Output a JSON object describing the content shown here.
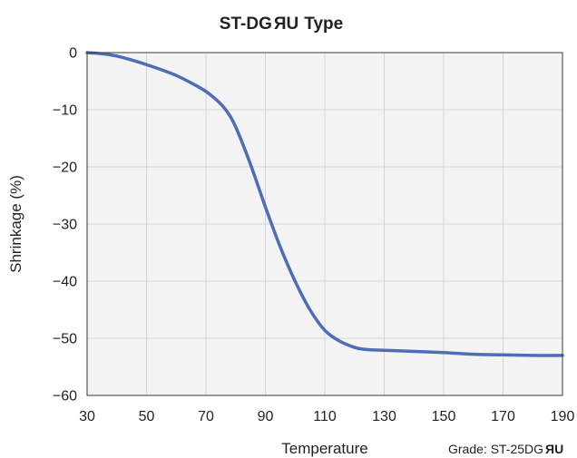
{
  "chart_data": {
    "type": "line",
    "title": "ST-DG",
    "title_suffix": "Type",
    "title_mark": "ur-recognized-mark",
    "xlabel": "Temperature",
    "ylabel": "Shrinkage (%)",
    "note": "Grade: ST-25DG",
    "note_mark": "ur-recognized-mark",
    "xlim": [
      30,
      190
    ],
    "ylim": [
      -60,
      0
    ],
    "x_ticks": [
      30,
      50,
      70,
      90,
      110,
      130,
      150,
      170,
      190
    ],
    "y_ticks": [
      0,
      -10,
      -20,
      -30,
      -40,
      -50,
      -60
    ],
    "x_tick_labels": [
      "30",
      "50",
      "70",
      "90",
      "110",
      "130",
      "150",
      "170",
      "190"
    ],
    "y_tick_labels": [
      "0",
      "−10",
      "−20",
      "−30",
      "−40",
      "−50",
      "−60"
    ],
    "grid": true,
    "series": [
      {
        "color": "#4f6cb5",
        "x": [
          30,
          35,
          40,
          45,
          50,
          55,
          60,
          65,
          70,
          75,
          78,
          80,
          83,
          86,
          90,
          95,
          100,
          105,
          110,
          115,
          120,
          123,
          125,
          130,
          140,
          150,
          160,
          170,
          180,
          190
        ],
        "y": [
          0,
          -0.2,
          -0.6,
          -1.3,
          -2.1,
          -3.0,
          -4.0,
          -5.3,
          -6.8,
          -9.0,
          -11.0,
          -13.0,
          -16.8,
          -21.0,
          -27.0,
          -34.0,
          -40.0,
          -45.0,
          -48.6,
          -50.5,
          -51.6,
          -51.9,
          -52.0,
          -52.1,
          -52.3,
          -52.5,
          -52.8,
          -52.9,
          -53.0,
          -53.0
        ]
      }
    ]
  }
}
